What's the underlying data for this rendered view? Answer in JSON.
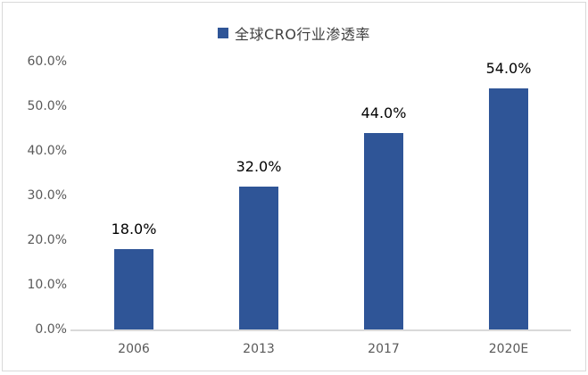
{
  "window": {
    "background": "#FFFFFF",
    "border_color": "#D9D9D9"
  },
  "legend": {
    "label": "全球CRO行业渗透率",
    "marker_color": "#2F5597",
    "position": "top"
  },
  "chart_data": {
    "type": "bar",
    "title": "全球CRO行业渗透率",
    "categories": [
      "2006",
      "2013",
      "2017",
      "2020E"
    ],
    "values": [
      18.0,
      32.0,
      44.0,
      54.0
    ],
    "value_labels": [
      "18.0%",
      "32.0%",
      "44.0%",
      "54.0%"
    ],
    "xlabel": "",
    "ylabel": "",
    "ylim": [
      0,
      60
    ],
    "yticks": [
      {
        "value": 0,
        "label": "0.0%"
      },
      {
        "value": 10,
        "label": "10.0%"
      },
      {
        "value": 20,
        "label": "20.0%"
      },
      {
        "value": 30,
        "label": "30.0%"
      },
      {
        "value": 40,
        "label": "40.0%"
      },
      {
        "value": 50,
        "label": "50.0%"
      },
      {
        "value": 60,
        "label": "60.0%"
      }
    ],
    "grid": false,
    "legend_position": "top",
    "bar_color": "#2F5597",
    "axis_line_color": "#D9D9D9",
    "tick_label_color": "#595959",
    "value_label_color": "#000000"
  }
}
